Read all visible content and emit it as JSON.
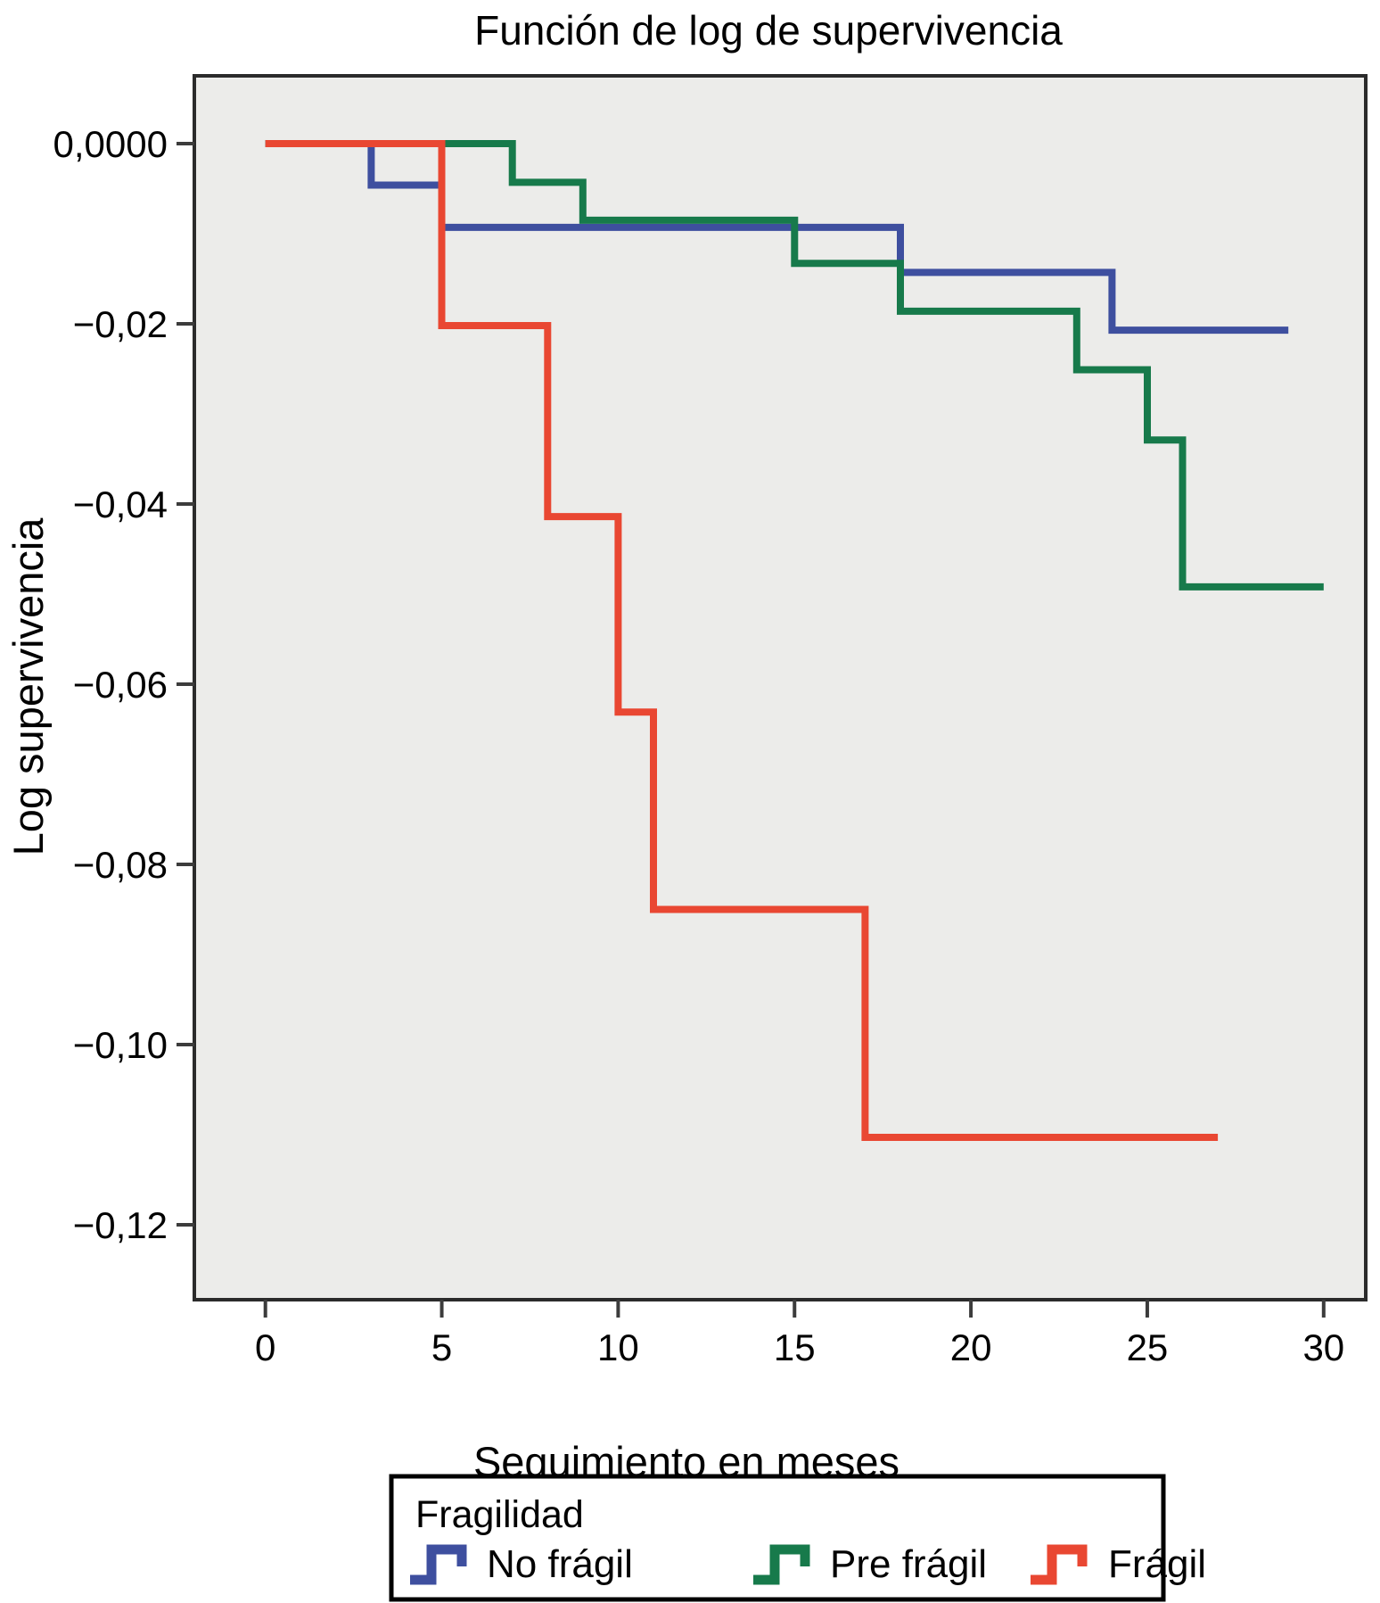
{
  "chart_data": {
    "type": "line",
    "subtype": "step",
    "title": "Función de log de supervivencia",
    "xlabel": "Seguimiento en meses",
    "ylabel": "Log supervivencia",
    "x_ticks": [
      0,
      5,
      10,
      15,
      20,
      25,
      30
    ],
    "y_ticks": [
      {
        "label": "0,0000",
        "value": 0
      },
      {
        "label": "−0,02",
        "value": -0.02
      },
      {
        "label": "−0,04",
        "value": -0.04
      },
      {
        "label": "−0,06",
        "value": -0.06
      },
      {
        "label": "−0,08",
        "value": -0.08
      },
      {
        "label": "−0,10",
        "value": -0.1
      },
      {
        "label": "−0,12",
        "value": -0.12
      },
      {
        "label": "−0,12",
        "value": -0.12
      }
    ],
    "xlim": [
      -2,
      31.3
    ],
    "ylim": [
      -0.1284,
      0.0075
    ],
    "grid": false,
    "plot_background": "#ECECEA",
    "legend": {
      "title": "Fragilidad",
      "position": "bottom"
    },
    "series": [
      {
        "name": "No frágil",
        "color": "#3E4F9F",
        "points": [
          [
            0,
            0
          ],
          [
            3,
            0
          ],
          [
            3,
            -0.0046
          ],
          [
            5,
            -0.0046
          ],
          [
            5,
            -0.0093
          ],
          [
            18,
            -0.0093
          ],
          [
            18,
            -0.0143
          ],
          [
            24,
            -0.0143
          ],
          [
            24,
            -0.0207
          ],
          [
            29,
            -0.0207
          ]
        ]
      },
      {
        "name": "Pre frágil",
        "color": "#177A4B",
        "points": [
          [
            0,
            0
          ],
          [
            7,
            0
          ],
          [
            7,
            -0.0043
          ],
          [
            9,
            -0.0043
          ],
          [
            9,
            -0.0085
          ],
          [
            15,
            -0.0085
          ],
          [
            15,
            -0.0133
          ],
          [
            18,
            -0.0133
          ],
          [
            18,
            -0.0186
          ],
          [
            23,
            -0.0186
          ],
          [
            23,
            -0.0251
          ],
          [
            25,
            -0.0251
          ],
          [
            25,
            -0.0329
          ],
          [
            26,
            -0.0329
          ],
          [
            26,
            -0.0492
          ],
          [
            30,
            -0.0492
          ]
        ]
      },
      {
        "name": "Frágil",
        "color": "#E94732",
        "points": [
          [
            0,
            0
          ],
          [
            5,
            0
          ],
          [
            5,
            -0.0202
          ],
          [
            8,
            -0.0202
          ],
          [
            8,
            -0.0414
          ],
          [
            10,
            -0.0414
          ],
          [
            10,
            -0.0631
          ],
          [
            11,
            -0.0631
          ],
          [
            11,
            -0.085
          ],
          [
            17,
            -0.085
          ],
          [
            17,
            -0.1103
          ],
          [
            27,
            -0.1103
          ]
        ]
      }
    ]
  }
}
